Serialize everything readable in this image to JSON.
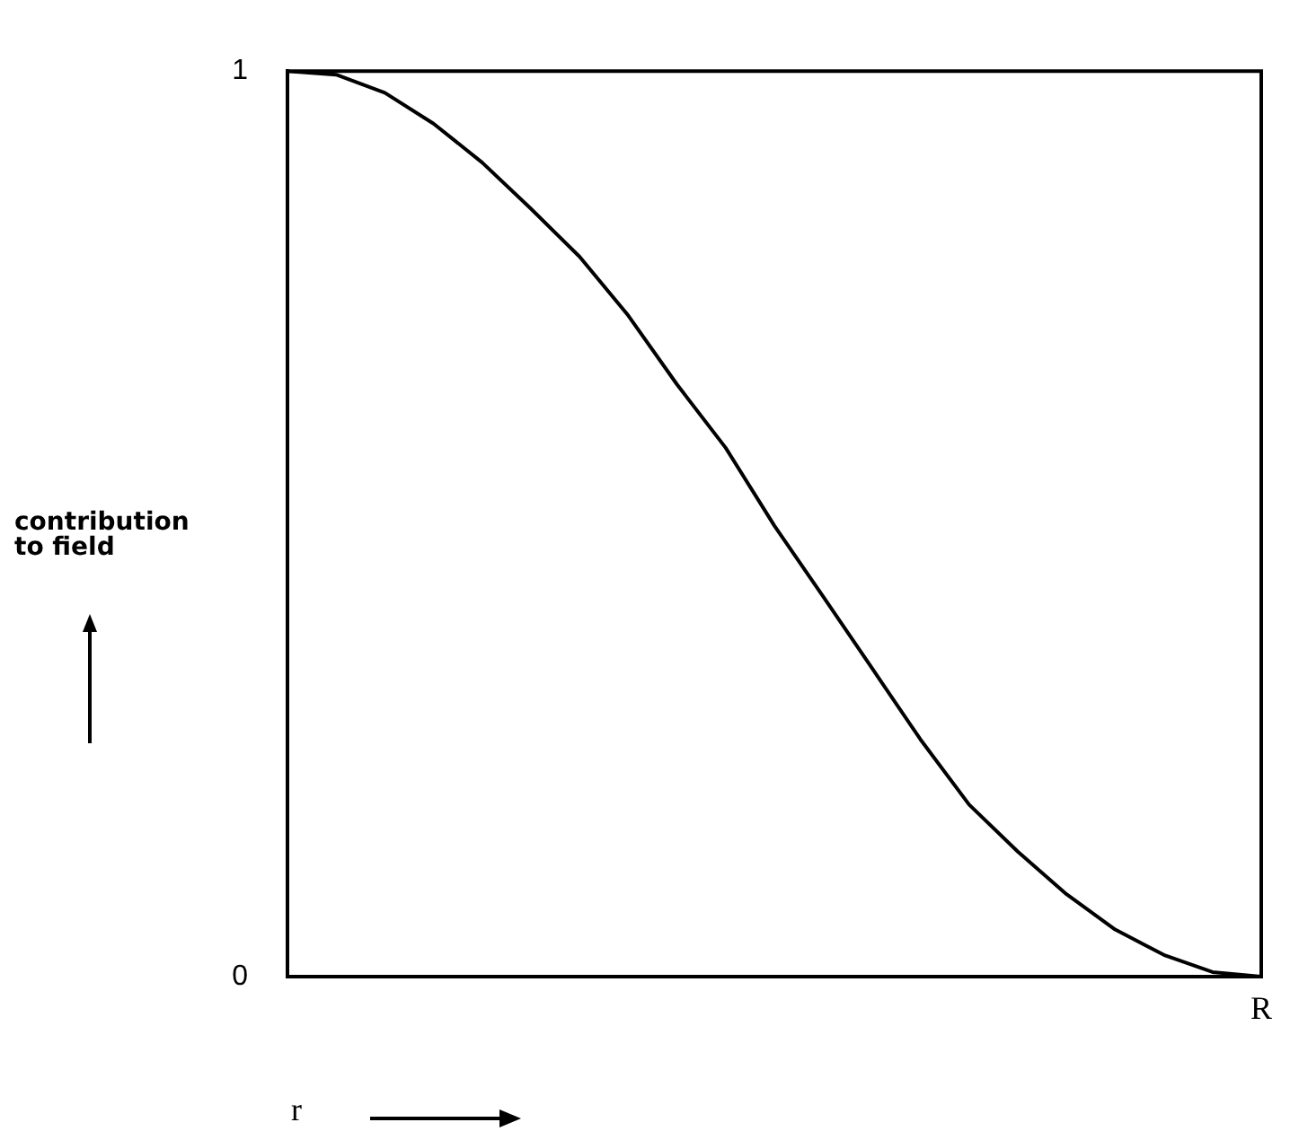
{
  "chart_data": {
    "type": "line",
    "categories": [
      null,
      null,
      null,
      null,
      null,
      null,
      null,
      null,
      null,
      null,
      null,
      null,
      null,
      null,
      null,
      null,
      null,
      null,
      null,
      null,
      null
    ],
    "series": [
      {
        "color": "#000000",
        "values": [
          1,
          0.996,
          0.976,
          0.942,
          0.899,
          0.848,
          0.795,
          0.73,
          0.654,
          0.584,
          0.498,
          0.42,
          0.341,
          0.262,
          0.19,
          0.138,
          0.091,
          0.052,
          0.024,
          0.005,
          0
        ]
      }
    ],
    "xlabel": "r",
    "ylabel": "contribution\nto field",
    "annotations": [
      "R"
    ],
    "ylim": [
      0,
      1
    ],
    "yticks": [
      0,
      1
    ],
    "marker": "none",
    "line_style": "solid"
  }
}
